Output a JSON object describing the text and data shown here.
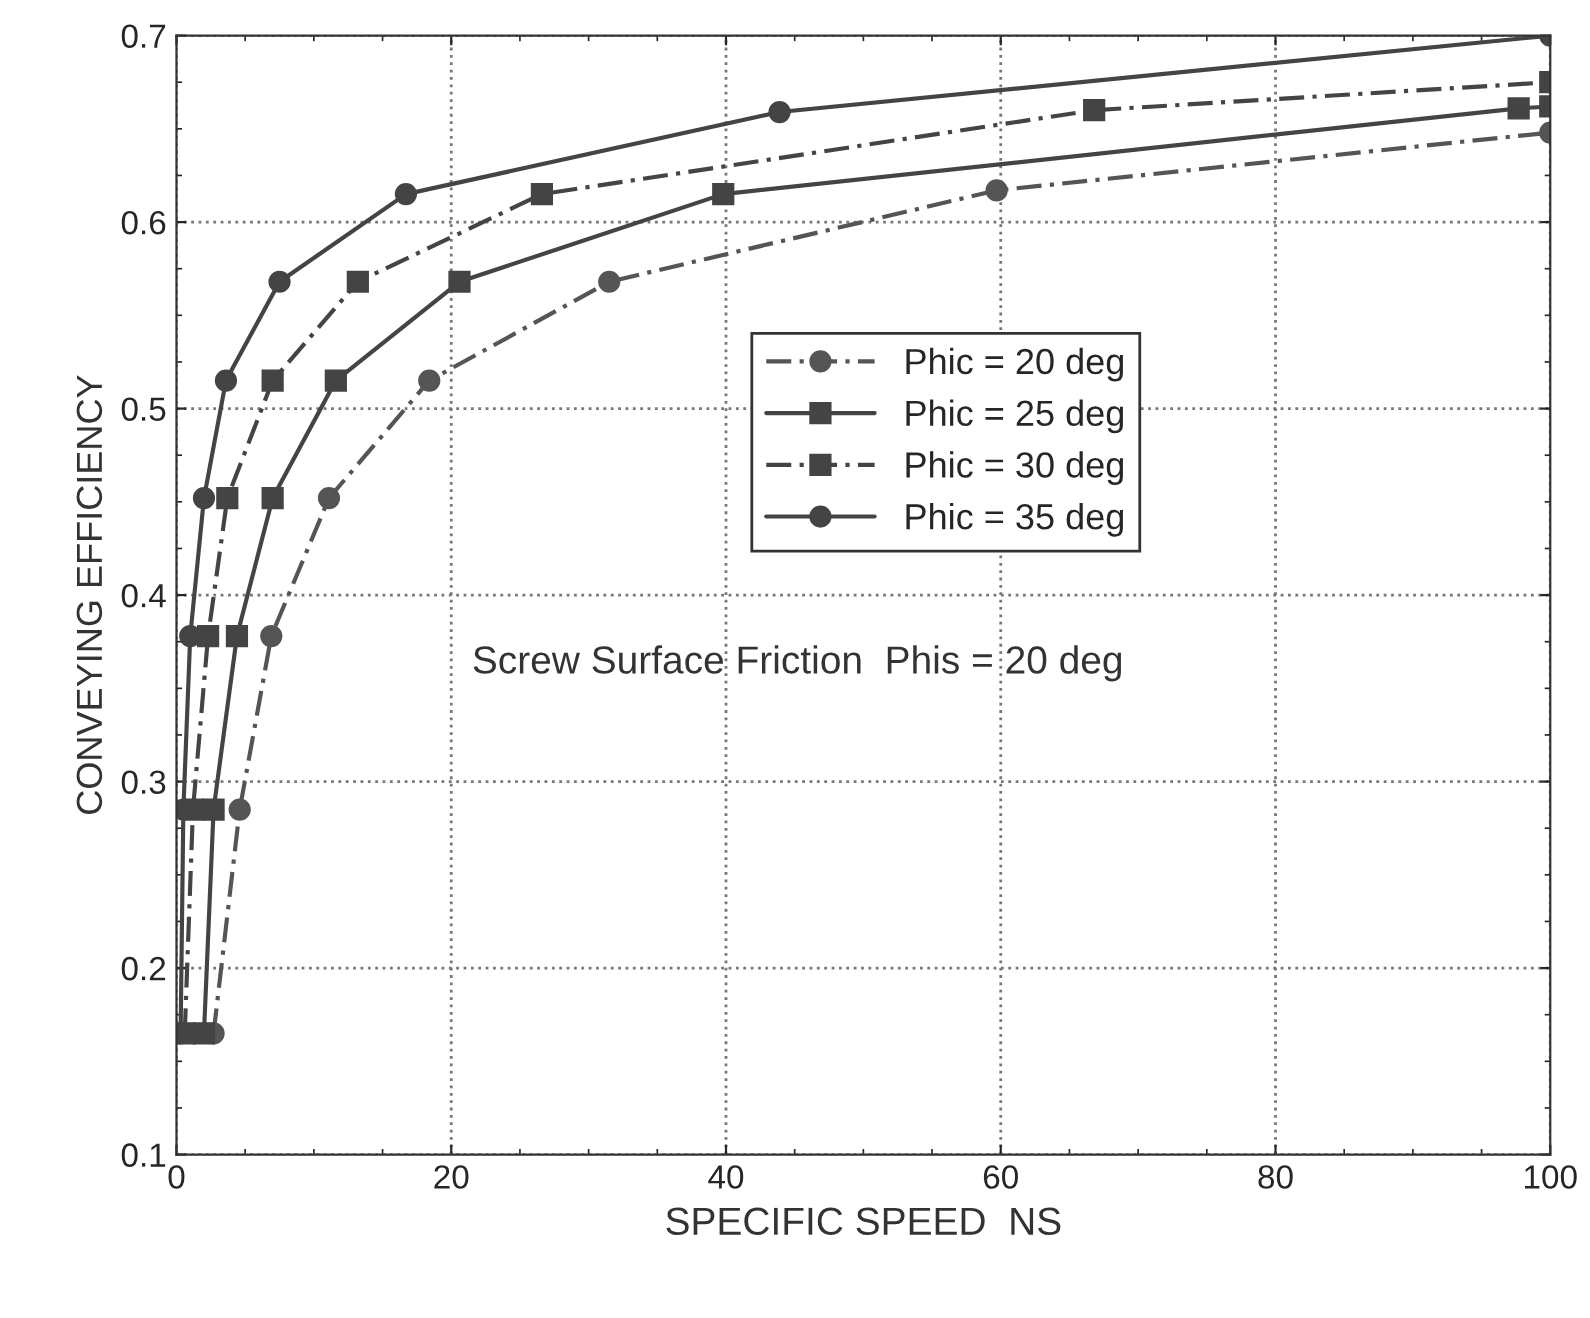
{
  "chart_data": {
    "type": "line",
    "xlabel": "SPECIFIC SPEED  NS",
    "ylabel": "CONVEYING EFFICIENCY",
    "xlim": [
      0,
      100
    ],
    "xticks": [
      0,
      20,
      40,
      60,
      80,
      100
    ],
    "ylim": [
      0.1,
      0.7
    ],
    "yticks": [
      0.1,
      0.2,
      0.3,
      0.4,
      0.5,
      0.6,
      0.7
    ],
    "grid": true,
    "legend": "top",
    "annotations": [
      "Screw Surface Friction  Phis = 20 deg"
    ],
    "series": [
      {
        "name": "Phic = 20 deg",
        "color": "#555555",
        "marker": "circle",
        "line_style": "dashed",
        "x": [
          2.7,
          4.6,
          6.9,
          11.1,
          18.4,
          31.5,
          59.7,
          100
        ],
        "values": [
          0.165,
          0.285,
          0.378,
          0.452,
          0.515,
          0.568,
          0.617,
          0.648
        ]
      },
      {
        "name": "Phic = 25 deg",
        "color": "#444444",
        "marker": "square",
        "line_style": "solid",
        "x": [
          2.0,
          2.7,
          4.4,
          7.0,
          11.6,
          20.6,
          39.8,
          97.7,
          100
        ],
        "values": [
          0.165,
          0.285,
          0.378,
          0.452,
          0.515,
          0.568,
          0.615,
          0.661,
          0.662
        ]
      },
      {
        "name": "Phic = 30 deg",
        "color": "#444444",
        "marker": "square",
        "line_style": "dashed",
        "x": [
          0.6,
          1.2,
          2.3,
          3.7,
          7.0,
          13.2,
          26.6,
          66.8,
          100
        ],
        "values": [
          0.165,
          0.285,
          0.378,
          0.452,
          0.515,
          0.568,
          0.615,
          0.66,
          0.675
        ]
      },
      {
        "name": "Phic = 35 deg",
        "color": "#444444",
        "marker": "circle",
        "line_style": "solid",
        "x": [
          0.3,
          0.5,
          1.0,
          2.0,
          3.6,
          7.5,
          16.7,
          43.9,
          100
        ],
        "values": [
          0.165,
          0.285,
          0.378,
          0.452,
          0.515,
          0.568,
          0.615,
          0.659,
          0.7
        ]
      }
    ]
  }
}
